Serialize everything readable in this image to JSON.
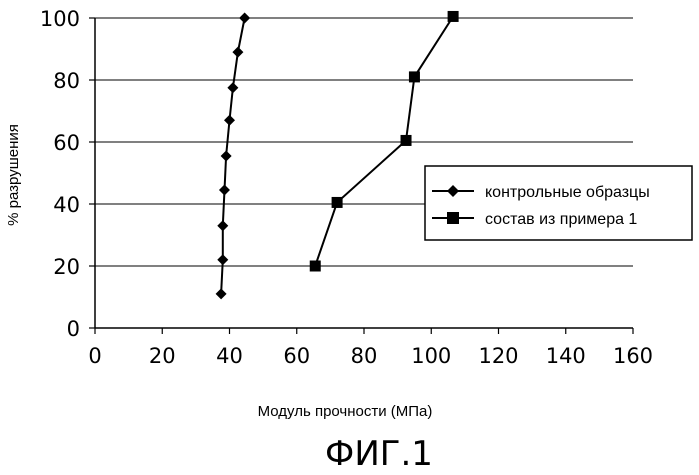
{
  "chart_data": {
    "type": "line",
    "title": "",
    "xlabel": "Модуль прочности (МПа)",
    "ylabel": "% разрушения",
    "xlim": [
      0,
      160
    ],
    "ylim": [
      0,
      100
    ],
    "xticks": [
      0,
      20,
      40,
      60,
      80,
      100,
      120,
      140,
      160
    ],
    "yticks": [
      0,
      20,
      40,
      60,
      80,
      100
    ],
    "grid": "horizontal",
    "legend_position": "right",
    "series": [
      {
        "name": "контрольные образцы",
        "marker": "diamond",
        "color": "#000000",
        "x": [
          37.5,
          38,
          38,
          38.5,
          39,
          40,
          41,
          42.5,
          44.5
        ],
        "y": [
          11,
          22,
          33,
          44.5,
          55.5,
          67,
          77.5,
          89,
          100
        ]
      },
      {
        "name": "состав из примера 1",
        "marker": "square",
        "color": "#000000",
        "x": [
          65.5,
          72,
          92.5,
          95,
          106.5
        ],
        "y": [
          20,
          40.5,
          60.5,
          81,
          100.5
        ]
      }
    ]
  },
  "figure_label": "ФИГ.1"
}
